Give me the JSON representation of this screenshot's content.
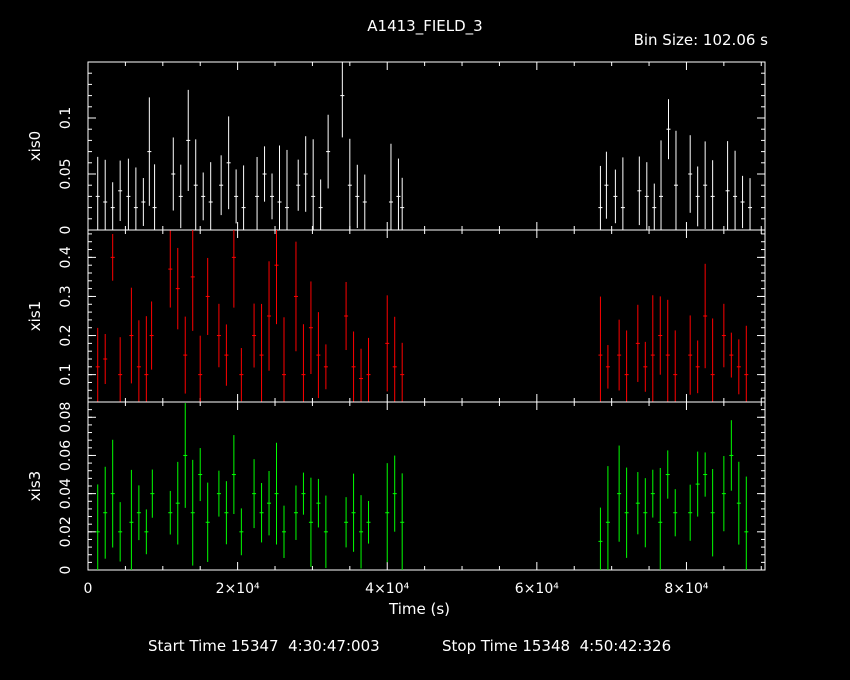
{
  "title": "A1413_FIELD_3",
  "bin_size_label": "Bin Size: 102.06 s",
  "footer": {
    "start_label": "Start Time 15347  4:30:47:003",
    "stop_label": "Stop Time 15348  4:50:42:326"
  },
  "colors": {
    "background": "#000000",
    "axes": "#ffffff",
    "xis0": "#ffffff",
    "xis1": "#ff0000",
    "xis3": "#00ff00"
  },
  "chart_data": {
    "type": "scatter",
    "xlabel": "Time (s)",
    "xlim": [
      0,
      90500
    ],
    "x_ticks": [
      0,
      20000,
      40000,
      60000,
      80000
    ],
    "x_tick_labels": [
      "0",
      "2×10⁴",
      "4×10⁴",
      "6×10⁴",
      "8×10⁴"
    ],
    "grid": false,
    "panels": [
      {
        "name": "xis0",
        "ylabel": "xis0",
        "color": "#ffffff",
        "ylim": [
          0,
          0.15
        ],
        "y_ticks": [
          0,
          0.05,
          0.1
        ],
        "y_tick_labels": [
          "0",
          "0.05",
          "0.1"
        ],
        "points": [
          [
            1300,
            0.03
          ],
          [
            2300,
            0.025
          ],
          [
            3300,
            0.02
          ],
          [
            4300,
            0.035
          ],
          [
            5400,
            0.03
          ],
          [
            6400,
            0.02
          ],
          [
            7400,
            0.025
          ],
          [
            8200,
            0.07
          ],
          [
            8900,
            0.02
          ],
          [
            11400,
            0.05
          ],
          [
            12400,
            0.03
          ],
          [
            13400,
            0.08
          ],
          [
            14400,
            0.04
          ],
          [
            15400,
            0.03
          ],
          [
            16400,
            0.025
          ],
          [
            17800,
            0.04
          ],
          [
            18800,
            0.06
          ],
          [
            19800,
            0.03
          ],
          [
            20800,
            0.02
          ],
          [
            22600,
            0.03
          ],
          [
            23600,
            0.05
          ],
          [
            24600,
            0.03
          ],
          [
            25600,
            0.025
          ],
          [
            26600,
            0.02
          ],
          [
            28100,
            0.04
          ],
          [
            29100,
            0.05
          ],
          [
            30100,
            0.03
          ],
          [
            31100,
            0.02
          ],
          [
            32100,
            0.07
          ],
          [
            34000,
            0.12
          ],
          [
            35000,
            0.04
          ],
          [
            36000,
            0.03
          ],
          [
            37000,
            0.025
          ],
          [
            40500,
            0.025
          ],
          [
            41500,
            0.03
          ],
          [
            42000,
            0.02
          ],
          [
            68500,
            0.02
          ],
          [
            69300,
            0.04
          ],
          [
            70500,
            0.03
          ],
          [
            71500,
            0.02
          ],
          [
            73700,
            0.035
          ],
          [
            74700,
            0.03
          ],
          [
            75700,
            0.02
          ],
          [
            76600,
            0.03
          ],
          [
            77600,
            0.09
          ],
          [
            78600,
            0.04
          ],
          [
            80500,
            0.05
          ],
          [
            81500,
            0.03
          ],
          [
            82500,
            0.04
          ],
          [
            83500,
            0.03
          ],
          [
            85500,
            0.035
          ],
          [
            86500,
            0.03
          ],
          [
            87500,
            0.025
          ],
          [
            88500,
            0.02
          ]
        ]
      },
      {
        "name": "xis1",
        "ylabel": "xis1",
        "color": "#ff0000",
        "ylim": [
          0.03,
          0.47
        ],
        "y_ticks": [
          0.1,
          0.2,
          0.3,
          0.4
        ],
        "y_tick_labels": [
          "0.1",
          "0.2",
          "0.3",
          "0.4"
        ],
        "points": [
          [
            1300,
            0.12
          ],
          [
            2300,
            0.14
          ],
          [
            3300,
            0.4
          ],
          [
            4300,
            0.1
          ],
          [
            5800,
            0.2
          ],
          [
            6800,
            0.12
          ],
          [
            7800,
            0.1
          ],
          [
            8500,
            0.2
          ],
          [
            11000,
            0.37
          ],
          [
            12000,
            0.32
          ],
          [
            13000,
            0.15
          ],
          [
            14000,
            0.35
          ],
          [
            15000,
            0.1
          ],
          [
            16000,
            0.3
          ],
          [
            17500,
            0.2
          ],
          [
            18500,
            0.15
          ],
          [
            19500,
            0.4
          ],
          [
            20500,
            0.1
          ],
          [
            22200,
            0.2
          ],
          [
            23200,
            0.15
          ],
          [
            24200,
            0.25
          ],
          [
            25200,
            0.38
          ],
          [
            26200,
            0.1
          ],
          [
            27800,
            0.3
          ],
          [
            28800,
            0.1
          ],
          [
            29800,
            0.22
          ],
          [
            30800,
            0.15
          ],
          [
            31800,
            0.12
          ],
          [
            34500,
            0.25
          ],
          [
            35500,
            0.12
          ],
          [
            36500,
            0.09
          ],
          [
            37500,
            0.1
          ],
          [
            40000,
            0.18
          ],
          [
            41000,
            0.12
          ],
          [
            42000,
            0.1
          ],
          [
            68500,
            0.15
          ],
          [
            69500,
            0.12
          ],
          [
            71000,
            0.15
          ],
          [
            72000,
            0.1
          ],
          [
            73500,
            0.18
          ],
          [
            74500,
            0.12
          ],
          [
            75500,
            0.15
          ],
          [
            76500,
            0.2
          ],
          [
            77500,
            0.15
          ],
          [
            78500,
            0.1
          ],
          [
            80500,
            0.15
          ],
          [
            81500,
            0.12
          ],
          [
            82500,
            0.25
          ],
          [
            83500,
            0.1
          ],
          [
            85000,
            0.2
          ],
          [
            86000,
            0.15
          ],
          [
            87000,
            0.12
          ],
          [
            88000,
            0.1
          ]
        ]
      },
      {
        "name": "xis3",
        "ylabel": "xis3",
        "color": "#00ff00",
        "ylim": [
          0,
          0.088
        ],
        "y_ticks": [
          0,
          0.02,
          0.04,
          0.06,
          0.08
        ],
        "y_tick_labels": [
          "0",
          "0.02",
          "0.04",
          "0.06",
          "0.08"
        ],
        "points": [
          [
            1300,
            0.02
          ],
          [
            2300,
            0.03
          ],
          [
            3300,
            0.04
          ],
          [
            4300,
            0.02
          ],
          [
            5800,
            0.025
          ],
          [
            6800,
            0.03
          ],
          [
            7800,
            0.02
          ],
          [
            8600,
            0.04
          ],
          [
            11000,
            0.03
          ],
          [
            12000,
            0.035
          ],
          [
            13000,
            0.06
          ],
          [
            14000,
            0.03
          ],
          [
            15000,
            0.05
          ],
          [
            16000,
            0.025
          ],
          [
            17500,
            0.04
          ],
          [
            18500,
            0.03
          ],
          [
            19500,
            0.05
          ],
          [
            20500,
            0.02
          ],
          [
            22200,
            0.04
          ],
          [
            23200,
            0.03
          ],
          [
            24200,
            0.035
          ],
          [
            25200,
            0.04
          ],
          [
            26200,
            0.02
          ],
          [
            27800,
            0.03
          ],
          [
            28800,
            0.04
          ],
          [
            29800,
            0.025
          ],
          [
            30800,
            0.035
          ],
          [
            31800,
            0.02
          ],
          [
            34500,
            0.025
          ],
          [
            35500,
            0.03
          ],
          [
            36500,
            0.02
          ],
          [
            37500,
            0.025
          ],
          [
            40000,
            0.03
          ],
          [
            41000,
            0.04
          ],
          [
            42000,
            0.025
          ],
          [
            68500,
            0.015
          ],
          [
            69500,
            0.025
          ],
          [
            71000,
            0.04
          ],
          [
            72000,
            0.03
          ],
          [
            73500,
            0.035
          ],
          [
            74500,
            0.03
          ],
          [
            75500,
            0.04
          ],
          [
            76500,
            0.025
          ],
          [
            77500,
            0.05
          ],
          [
            78500,
            0.03
          ],
          [
            80500,
            0.03
          ],
          [
            81500,
            0.045
          ],
          [
            82500,
            0.05
          ],
          [
            83500,
            0.03
          ],
          [
            85000,
            0.04
          ],
          [
            86000,
            0.06
          ],
          [
            87000,
            0.035
          ],
          [
            88000,
            0.02
          ]
        ]
      }
    ]
  }
}
